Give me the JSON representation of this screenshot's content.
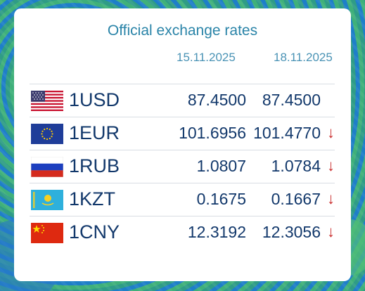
{
  "title": "Official exchange rates",
  "dates": [
    "15.11.2025",
    "18.11.2025"
  ],
  "rows": [
    {
      "code": "1USD",
      "flag": "us-flag-icon",
      "v1": "87.4500",
      "v2": "87.4500",
      "arrow": ""
    },
    {
      "code": "1EUR",
      "flag": "eu-flag-icon",
      "v1": "101.6956",
      "v2": "101.4770",
      "arrow": "↓"
    },
    {
      "code": "1RUB",
      "flag": "ru-flag-icon",
      "v1": "1.0807",
      "v2": "1.0784",
      "arrow": "↓"
    },
    {
      "code": "1KZT",
      "flag": "kz-flag-icon",
      "v1": "0.1675",
      "v2": "0.1667",
      "arrow": "↓"
    },
    {
      "code": "1CNY",
      "flag": "cn-flag-icon",
      "v1": "12.3192",
      "v2": "12.3056",
      "arrow": "↓"
    }
  ],
  "colors": {
    "title": "#2a84a8",
    "value": "#12386b",
    "down_arrow": "#c92a2a"
  }
}
